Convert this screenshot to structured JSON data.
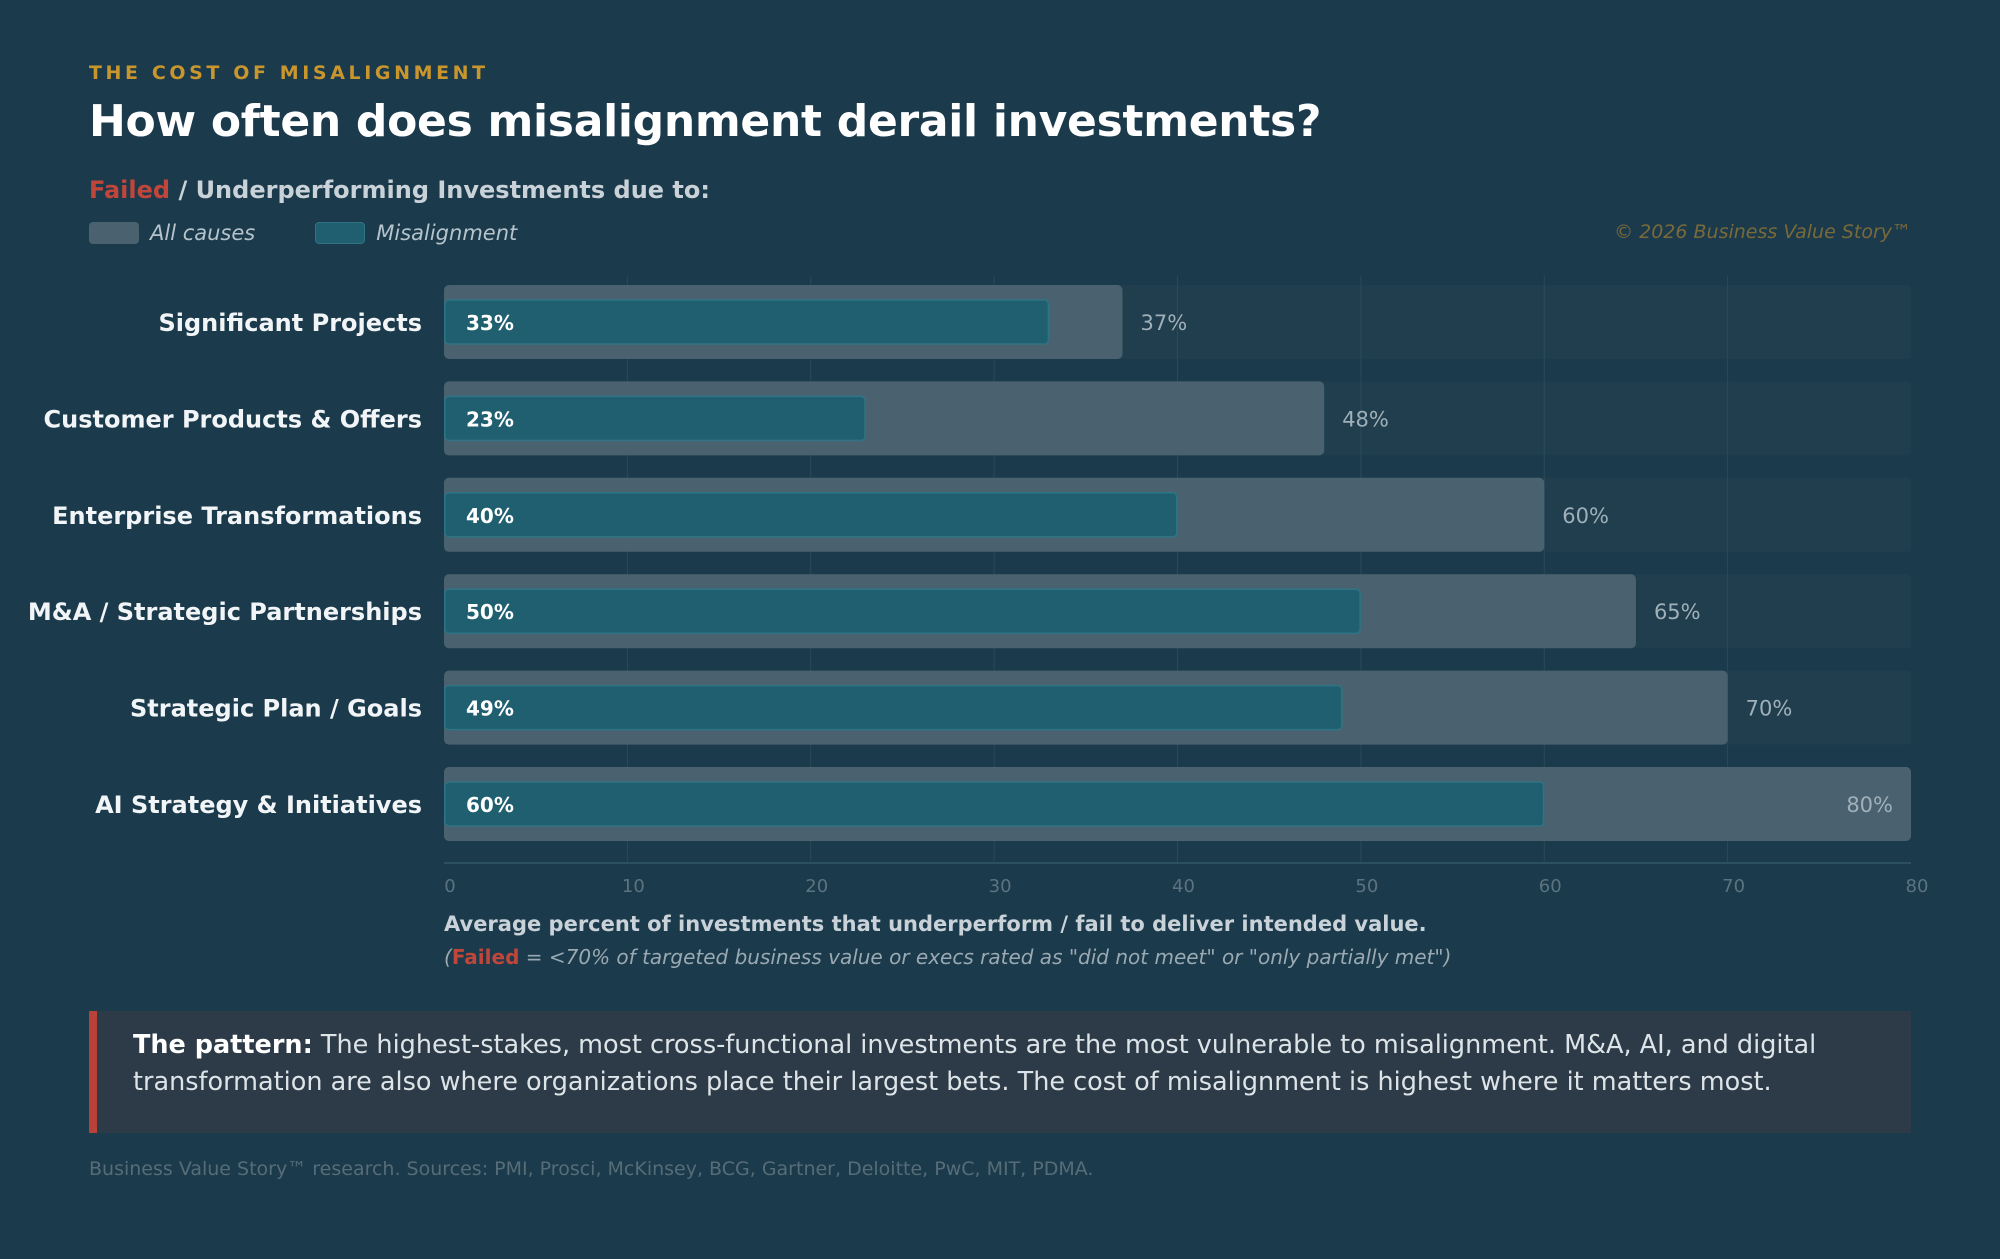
{
  "header": {
    "eyebrow": "THE COST OF MISALIGNMENT",
    "title": "How often does misalignment derail investments?",
    "subtitle_failed": "Failed",
    "subtitle_rest": " / Underperforming Investments due to:",
    "copyright": "© 2026 Business Value Story™"
  },
  "legend": {
    "all_causes": "All causes",
    "misalignment": "Misalignment"
  },
  "chart_data": {
    "type": "bar",
    "orientation": "horizontal",
    "categories": [
      "Significant Projects",
      "Customer Products & Offers",
      "Enterprise Transformations",
      "M&A / Strategic Partnerships",
      "Strategic Plan / Goals",
      "AI Strategy & Initiatives"
    ],
    "series": [
      {
        "name": "All causes",
        "values": [
          37,
          48,
          60,
          65,
          70,
          80
        ],
        "labels": [
          "37%",
          "48%",
          "60%",
          "65%",
          "70%",
          "80%"
        ]
      },
      {
        "name": "Misalignment",
        "values": [
          33,
          23,
          40,
          50,
          49,
          60
        ],
        "labels": [
          "33%",
          "23%",
          "40%",
          "50%",
          "49%",
          "60%"
        ]
      }
    ],
    "xlim": [
      0,
      80
    ],
    "xticks": [
      0,
      10,
      20,
      30,
      40,
      50,
      60,
      70,
      80
    ],
    "grid": true,
    "colors": {
      "all_causes": "#4a6270",
      "misalignment": "#1f5f70",
      "misalignment_border": "#2e7484",
      "track": "#213e4f",
      "accent_red": "#c0463c"
    }
  },
  "footnote": {
    "line1": "Average percent of investments that underperform / fail to deliver intended value.",
    "line2_open": "(",
    "line2_failed": "Failed",
    "line2_rest": " = <70% of targeted business value or execs rated as \"did not meet\" or \"only partially met\")"
  },
  "pattern": {
    "lead": "The pattern:",
    "text": " The highest-stakes, most cross-functional investments are the most vulnerable to misalignment. M&A, AI, and digital transformation are also where organizations place their largest bets. The cost of misalignment is highest where it matters most."
  },
  "source": "Business Value Story™ research. Sources: PMI, Prosci, McKinsey, BCG, Gartner, Deloitte, PwC, MIT, PDMA."
}
